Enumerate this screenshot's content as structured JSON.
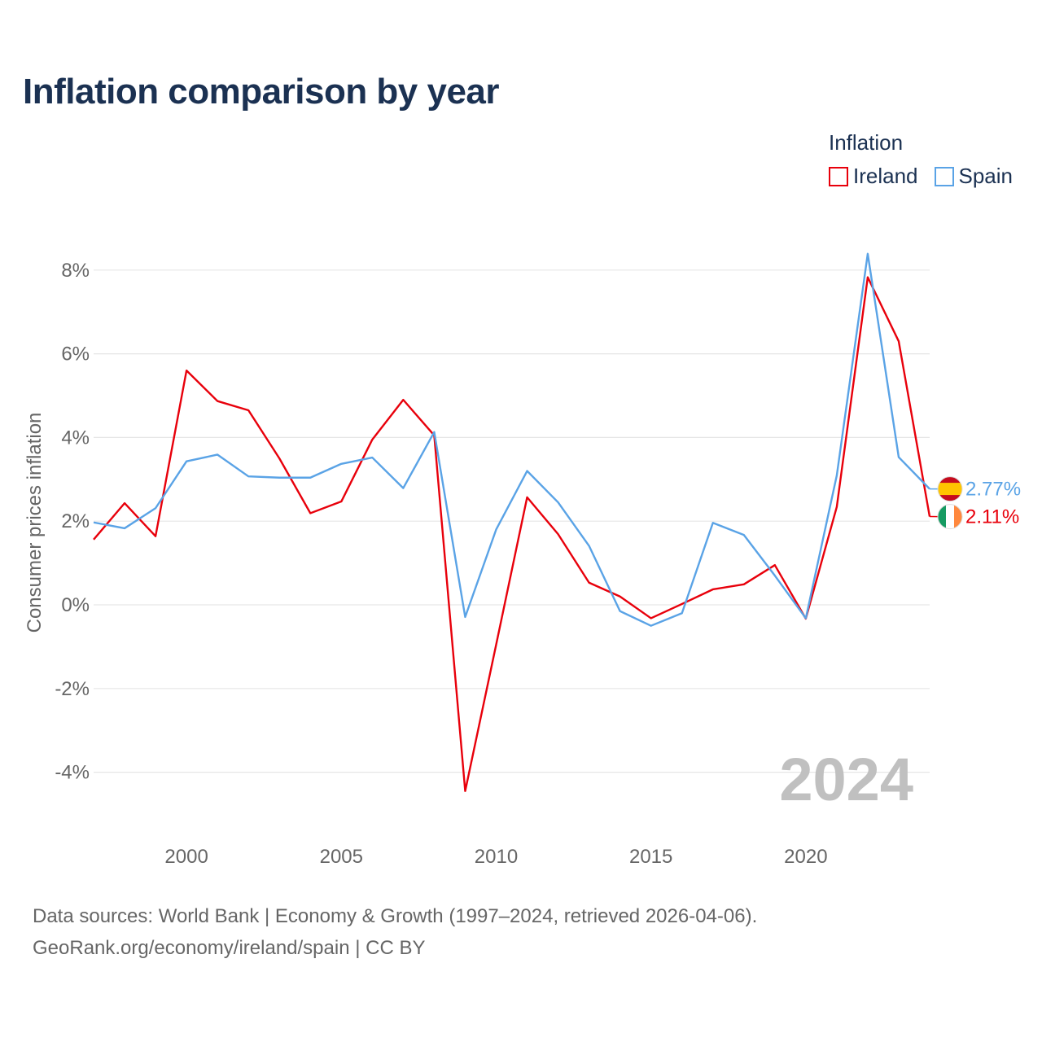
{
  "title": "Inflation comparison by year",
  "legend": {
    "title": "Inflation",
    "items": [
      {
        "label": "Ireland",
        "color": "#e8000b"
      },
      {
        "label": "Spain",
        "color": "#5aa3e6"
      }
    ]
  },
  "footer": {
    "line1": "Data sources: World Bank | Economy & Growth (1997–2024, retrieved 2026-04-06).",
    "line2": "GeoRank.org/economy/ireland/spain | CC BY"
  },
  "chart_data": {
    "type": "line",
    "title": "Inflation comparison by year",
    "xlabel": "",
    "ylabel": "Consumer prices inflation",
    "x": [
      1997,
      1998,
      1999,
      2000,
      2001,
      2002,
      2003,
      2004,
      2005,
      2006,
      2007,
      2008,
      2009,
      2010,
      2011,
      2012,
      2013,
      2014,
      2015,
      2016,
      2017,
      2018,
      2019,
      2020,
      2021,
      2022,
      2023,
      2024
    ],
    "xlim": [
      1997,
      2024
    ],
    "ylim": [
      -5,
      8.5
    ],
    "xticks": [
      2000,
      2005,
      2010,
      2015,
      2020
    ],
    "xtick_labels": [
      "2000",
      "2005",
      "2010",
      "2015",
      "2020"
    ],
    "yticks": [
      -4,
      -2,
      0,
      2,
      4,
      6,
      8
    ],
    "ytick_labels": [
      "-4%",
      "-2%",
      "0%",
      "2%",
      "4%",
      "6%",
      "8%"
    ],
    "grid": true,
    "watermark_year": "2024",
    "series": [
      {
        "name": "Ireland",
        "color": "#e8000b",
        "values": [
          1.56,
          2.43,
          1.64,
          5.6,
          4.87,
          4.65,
          3.5,
          2.19,
          2.47,
          3.95,
          4.9,
          4.05,
          -4.45,
          -0.95,
          2.57,
          1.69,
          0.53,
          0.2,
          -0.32,
          0.02,
          0.37,
          0.49,
          0.95,
          -0.33,
          2.34,
          7.83,
          6.3,
          2.11
        ],
        "end_label": "2.11%",
        "flag": "ireland"
      },
      {
        "name": "Spain",
        "color": "#5aa3e6",
        "values": [
          1.97,
          1.83,
          2.31,
          3.43,
          3.59,
          3.07,
          3.04,
          3.04,
          3.37,
          3.52,
          2.79,
          4.13,
          -0.29,
          1.8,
          3.2,
          2.45,
          1.41,
          -0.15,
          -0.5,
          -0.2,
          1.96,
          1.67,
          0.7,
          -0.32,
          3.09,
          8.39,
          3.53,
          2.77
        ],
        "end_label": "2.77%",
        "flag": "spain"
      }
    ]
  }
}
